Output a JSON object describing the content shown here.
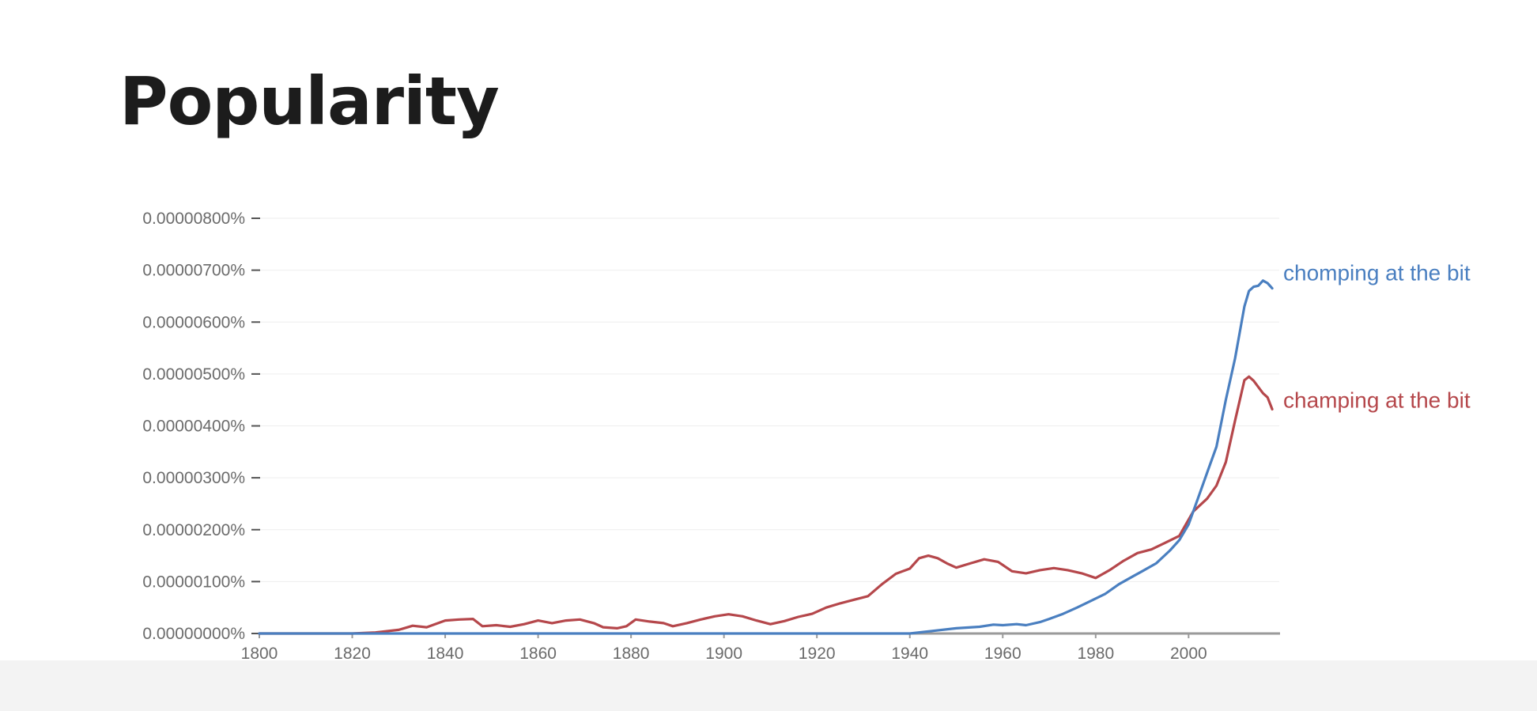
{
  "page": {
    "title": "Popularity"
  },
  "chart_data": {
    "type": "line",
    "xlim": [
      1800,
      2019
    ],
    "ylim": [
      0,
      8
    ],
    "x_ticks": [
      {
        "value": 1800,
        "label": "1800"
      },
      {
        "value": 1820,
        "label": "1820"
      },
      {
        "value": 1840,
        "label": "1840"
      },
      {
        "value": 1860,
        "label": "1860"
      },
      {
        "value": 1880,
        "label": "1880"
      },
      {
        "value": 1900,
        "label": "1900"
      },
      {
        "value": 1920,
        "label": "1920"
      },
      {
        "value": 1940,
        "label": "1940"
      },
      {
        "value": 1960,
        "label": "1960"
      },
      {
        "value": 1980,
        "label": "1980"
      },
      {
        "value": 2000,
        "label": "2000"
      }
    ],
    "y_ticks": [
      {
        "value": 0,
        "label": "0.00000000%"
      },
      {
        "value": 1,
        "label": "0.00000100%"
      },
      {
        "value": 2,
        "label": "0.00000200%"
      },
      {
        "value": 3,
        "label": "0.00000300%"
      },
      {
        "value": 4,
        "label": "0.00000400%"
      },
      {
        "value": 5,
        "label": "0.00000500%"
      },
      {
        "value": 6,
        "label": "0.00000600%"
      },
      {
        "value": 7,
        "label": "0.00000700%"
      },
      {
        "value": 8,
        "label": "0.00000800%"
      }
    ],
    "grid": true,
    "legend": "inline-right",
    "series": [
      {
        "name": "chomping at the bit",
        "color": "#4a7fc0",
        "points": [
          [
            1800,
            0
          ],
          [
            1900,
            0
          ],
          [
            1940,
            0
          ],
          [
            1945,
            0.05
          ],
          [
            1950,
            0.1
          ],
          [
            1955,
            0.13
          ],
          [
            1958,
            0.17
          ],
          [
            1960,
            0.16
          ],
          [
            1963,
            0.18
          ],
          [
            1965,
            0.16
          ],
          [
            1968,
            0.22
          ],
          [
            1970,
            0.28
          ],
          [
            1973,
            0.38
          ],
          [
            1976,
            0.5
          ],
          [
            1979,
            0.63
          ],
          [
            1982,
            0.76
          ],
          [
            1985,
            0.95
          ],
          [
            1988,
            1.1
          ],
          [
            1990,
            1.2
          ],
          [
            1993,
            1.35
          ],
          [
            1996,
            1.6
          ],
          [
            1998,
            1.8
          ],
          [
            2000,
            2.1
          ],
          [
            2002,
            2.6
          ],
          [
            2004,
            3.1
          ],
          [
            2006,
            3.6
          ],
          [
            2008,
            4.5
          ],
          [
            2010,
            5.3
          ],
          [
            2011,
            5.8
          ],
          [
            2012,
            6.3
          ],
          [
            2013,
            6.6
          ],
          [
            2014,
            6.68
          ],
          [
            2015,
            6.7
          ],
          [
            2016,
            6.8
          ],
          [
            2017,
            6.75
          ],
          [
            2018,
            6.65
          ]
        ]
      },
      {
        "name": "champing at the bit",
        "color": "#b5474b",
        "points": [
          [
            1800,
            0
          ],
          [
            1820,
            0
          ],
          [
            1825,
            0.02
          ],
          [
            1830,
            0.07
          ],
          [
            1833,
            0.15
          ],
          [
            1836,
            0.12
          ],
          [
            1840,
            0.25
          ],
          [
            1843,
            0.27
          ],
          [
            1846,
            0.28
          ],
          [
            1848,
            0.14
          ],
          [
            1851,
            0.16
          ],
          [
            1854,
            0.13
          ],
          [
            1857,
            0.18
          ],
          [
            1860,
            0.25
          ],
          [
            1863,
            0.2
          ],
          [
            1866,
            0.25
          ],
          [
            1869,
            0.27
          ],
          [
            1872,
            0.2
          ],
          [
            1874,
            0.12
          ],
          [
            1877,
            0.1
          ],
          [
            1879,
            0.14
          ],
          [
            1881,
            0.27
          ],
          [
            1884,
            0.23
          ],
          [
            1887,
            0.2
          ],
          [
            1889,
            0.14
          ],
          [
            1892,
            0.2
          ],
          [
            1895,
            0.27
          ],
          [
            1898,
            0.33
          ],
          [
            1901,
            0.37
          ],
          [
            1904,
            0.33
          ],
          [
            1907,
            0.25
          ],
          [
            1910,
            0.18
          ],
          [
            1913,
            0.24
          ],
          [
            1916,
            0.32
          ],
          [
            1919,
            0.38
          ],
          [
            1922,
            0.5
          ],
          [
            1925,
            0.58
          ],
          [
            1928,
            0.65
          ],
          [
            1931,
            0.72
          ],
          [
            1934,
            0.95
          ],
          [
            1937,
            1.15
          ],
          [
            1940,
            1.25
          ],
          [
            1942,
            1.45
          ],
          [
            1944,
            1.5
          ],
          [
            1946,
            1.45
          ],
          [
            1948,
            1.35
          ],
          [
            1950,
            1.27
          ],
          [
            1953,
            1.35
          ],
          [
            1956,
            1.43
          ],
          [
            1959,
            1.38
          ],
          [
            1962,
            1.2
          ],
          [
            1965,
            1.16
          ],
          [
            1968,
            1.22
          ],
          [
            1971,
            1.26
          ],
          [
            1974,
            1.22
          ],
          [
            1977,
            1.16
          ],
          [
            1980,
            1.07
          ],
          [
            1983,
            1.22
          ],
          [
            1986,
            1.4
          ],
          [
            1989,
            1.55
          ],
          [
            1992,
            1.62
          ],
          [
            1995,
            1.75
          ],
          [
            1998,
            1.88
          ],
          [
            2001,
            2.35
          ],
          [
            2004,
            2.6
          ],
          [
            2006,
            2.85
          ],
          [
            2008,
            3.3
          ],
          [
            2010,
            4.1
          ],
          [
            2012,
            4.88
          ],
          [
            2013,
            4.95
          ],
          [
            2014,
            4.87
          ],
          [
            2015,
            4.75
          ],
          [
            2016,
            4.63
          ],
          [
            2017,
            4.55
          ],
          [
            2018,
            4.32
          ]
        ]
      }
    ]
  }
}
